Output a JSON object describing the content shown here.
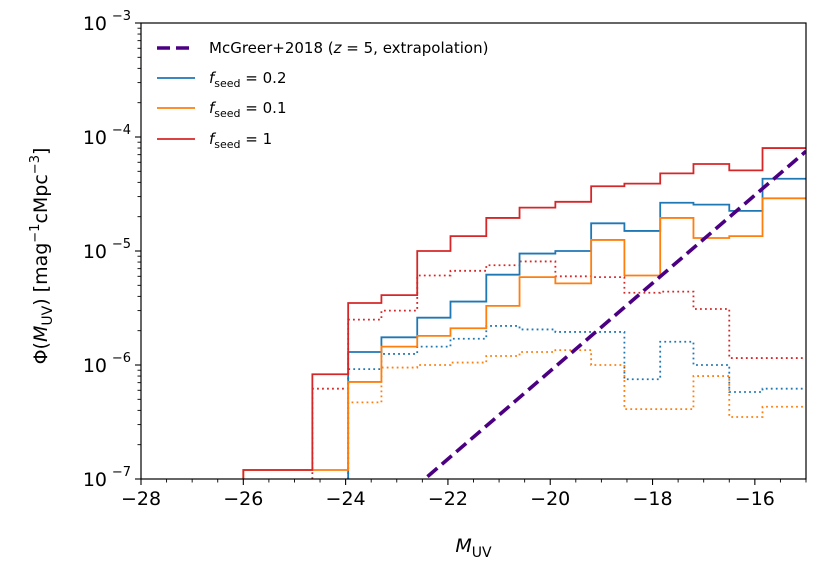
{
  "chart_data": {
    "type": "line",
    "xlabel": "M_UV",
    "ylabel": "Φ(M_UV) [mag⁻¹cMpc⁻³]",
    "xlim": [
      -28,
      -15
    ],
    "ylim": [
      1e-07,
      0.001
    ],
    "yscale": "log",
    "x_ticks": [
      -28,
      -26,
      -24,
      -22,
      -20,
      -18,
      -16
    ],
    "x_tick_labels": [
      "−28",
      "−26",
      "−24",
      "−22",
      "−20",
      "−18",
      "−16"
    ],
    "y_ticks": [
      1e-07,
      1e-06,
      1e-05,
      0.0001,
      0.001
    ],
    "y_tick_labels": [
      {
        "base": "10",
        "exp": "−7"
      },
      {
        "base": "10",
        "exp": "−6"
      },
      {
        "base": "10",
        "exp": "−5"
      },
      {
        "base": "10",
        "exp": "−4"
      },
      {
        "base": "10",
        "exp": "−3"
      }
    ],
    "legend_position": "top-left",
    "bin_edges": [
      -26.0,
      -25.3,
      -24.65,
      -23.95,
      -23.3,
      -22.6,
      -21.95,
      -21.25,
      -20.6,
      -19.9,
      -19.2,
      -18.55,
      -17.85,
      -17.2,
      -16.5,
      -15.85,
      -15.0
    ],
    "series": [
      {
        "name": "McGreer+2018 (z = 5, extrapolation)",
        "legend": {
          "main": "McGreer+2018 (",
          "italic": "z",
          "rest": " = 5, extrapolation)"
        },
        "style": "dashed",
        "color": "#4b0082",
        "x": [
          -22.4,
          -15.0
        ],
        "y": [
          1.05e-07,
          7.5e-05
        ]
      },
      {
        "name": "f_seed = 0.2",
        "legend": {
          "italic": "f",
          "sub": "seed",
          "rest": " = 0.2"
        },
        "style": "step-solid",
        "color": "#1f77b4",
        "values": [
          null,
          null,
          null,
          1.3e-06,
          1.75e-06,
          2.6e-06,
          3.6e-06,
          6.2e-06,
          9.5e-06,
          1e-05,
          1.75e-05,
          1.5e-05,
          2.65e-05,
          2.55e-05,
          2.25e-05,
          4.3e-05
        ]
      },
      {
        "name": "f_seed = 0.1",
        "legend": {
          "italic": "f",
          "sub": "seed",
          "rest": " = 0.1"
        },
        "style": "step-solid",
        "color": "#ff7f0e",
        "values": [
          1.2e-07,
          1.2e-07,
          1.2e-07,
          7.1e-07,
          1.45e-06,
          1.8e-06,
          2.1e-06,
          3.3e-06,
          5.9e-06,
          5.2e-06,
          1.25e-05,
          6.1e-06,
          1.95e-05,
          1.3e-05,
          1.35e-05,
          2.9e-05
        ]
      },
      {
        "name": "f_seed = 1",
        "legend": {
          "italic": "f",
          "sub": "seed",
          "rest": " = 1"
        },
        "style": "step-solid",
        "color": "#d62728",
        "values": [
          1.2e-07,
          1.2e-07,
          8.3e-07,
          3.5e-06,
          4.1e-06,
          1e-05,
          1.35e-05,
          1.95e-05,
          2.4e-05,
          2.7e-05,
          3.7e-05,
          3.9e-05,
          4.8e-05,
          5.8e-05,
          5.1e-05,
          8e-05
        ]
      },
      {
        "name": "f_seed = 0.2 (dotted)",
        "style": "step-dotted",
        "color": "#1f77b4",
        "values": [
          null,
          null,
          null,
          9.2e-07,
          1.25e-06,
          1.45e-06,
          1.7e-06,
          2.2e-06,
          2.05e-06,
          1.95e-06,
          1.95e-06,
          7.5e-07,
          1.6e-06,
          1e-06,
          5.8e-07,
          6.2e-07
        ]
      },
      {
        "name": "f_seed = 0.1 (dotted)",
        "style": "step-dotted",
        "color": "#ff7f0e",
        "values": [
          null,
          null,
          null,
          4.7e-07,
          9.5e-07,
          1e-06,
          1.05e-06,
          1.2e-06,
          1.3e-06,
          1.35e-06,
          1e-06,
          4.1e-07,
          4.1e-07,
          8e-07,
          3.5e-07,
          4.3e-07
        ]
      },
      {
        "name": "f_seed = 1 (dotted)",
        "style": "step-dotted",
        "color": "#d62728",
        "values": [
          null,
          null,
          6.2e-07,
          2.5e-06,
          3e-06,
          6.1e-06,
          6.7e-06,
          7.5e-06,
          8.1e-06,
          6e-06,
          5.9e-06,
          4.3e-06,
          4.4e-06,
          3.1e-06,
          1.15e-06,
          1.15e-06
        ]
      }
    ]
  }
}
